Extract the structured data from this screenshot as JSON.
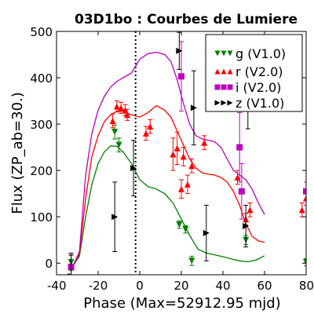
{
  "chart_data": {
    "type": "scatter",
    "title": "03D1bo : Courbes de Lumiere",
    "xlabel": "Phase (Max=52912.95 mjd)",
    "ylabel": "Flux (ZP_ab=30.)",
    "xlim": [
      -40,
      80
    ],
    "ylim": [
      -25,
      500
    ],
    "xticks": [
      -40,
      -20,
      0,
      20,
      40,
      60,
      80
    ],
    "yticks": [
      0,
      100,
      200,
      300,
      400,
      500
    ],
    "xtick_labels": [
      "-40",
      "-20",
      "0",
      "20",
      "40",
      "60",
      "80"
    ],
    "ytick_labels": [
      "0",
      "100",
      "200",
      "300",
      "400",
      "500"
    ],
    "max_phase_line": -2,
    "legend_position": "top-right",
    "series": [
      {
        "name": "g (V1.0)",
        "color": "#008000",
        "marker": "triangle-down",
        "points": [
          {
            "x": -33,
            "y": 2,
            "err": 18
          },
          {
            "x": -12,
            "y": 283,
            "err": 15
          },
          {
            "x": -10,
            "y": 255,
            "err": 15
          },
          {
            "x": 19,
            "y": 83,
            "err": 8
          },
          {
            "x": 22,
            "y": 73,
            "err": 8
          },
          {
            "x": 25,
            "y": 5,
            "err": 10
          },
          {
            "x": 51,
            "y": 50,
            "err": 10
          },
          {
            "x": 80,
            "y": 2,
            "err": 8
          }
        ],
        "curve": [
          [
            -32,
            -5
          ],
          [
            -29,
            15
          ],
          [
            -26,
            100
          ],
          [
            -23,
            170
          ],
          [
            -20,
            215
          ],
          [
            -17,
            240
          ],
          [
            -14,
            253
          ],
          [
            -11,
            252
          ],
          [
            -8,
            240
          ],
          [
            -4,
            215
          ],
          [
            0,
            180
          ],
          [
            4,
            165
          ],
          [
            8,
            160
          ],
          [
            12,
            150
          ],
          [
            16,
            130
          ],
          [
            20,
            95
          ],
          [
            24,
            60
          ],
          [
            28,
            30
          ],
          [
            32,
            22
          ],
          [
            36,
            18
          ],
          [
            40,
            14
          ],
          [
            44,
            9
          ],
          [
            48,
            5
          ],
          [
            52,
            3
          ],
          [
            56,
            7
          ],
          [
            60,
            16
          ]
        ]
      },
      {
        "name": "r (V2.0)",
        "color": "#ff0000",
        "marker": "triangle-up",
        "points": [
          {
            "x": -13,
            "y": 307,
            "err": 15
          },
          {
            "x": -11,
            "y": 338,
            "err": 12
          },
          {
            "x": -9,
            "y": 335,
            "err": 12
          },
          {
            "x": -7,
            "y": 330,
            "err": 12
          },
          {
            "x": -6,
            "y": 320,
            "err": 12
          },
          {
            "x": 3,
            "y": 280,
            "err": 15
          },
          {
            "x": 5,
            "y": 295,
            "err": 15
          },
          {
            "x": 16,
            "y": 235,
            "err": 35
          },
          {
            "x": 18,
            "y": 248,
            "err": 35
          },
          {
            "x": 20,
            "y": 160,
            "err": 20
          },
          {
            "x": 21,
            "y": 230,
            "err": 20
          },
          {
            "x": 23,
            "y": 170,
            "err": 20
          },
          {
            "x": 25,
            "y": 210,
            "err": 15
          },
          {
            "x": 31,
            "y": 260,
            "err": 15
          },
          {
            "x": 47,
            "y": 185,
            "err": 15
          },
          {
            "x": 51,
            "y": 95,
            "err": 12
          },
          {
            "x": 53,
            "y": 115,
            "err": 15
          },
          {
            "x": 78,
            "y": 115,
            "err": 15
          },
          {
            "x": 80,
            "y": 140,
            "err": 15
          }
        ],
        "curve": [
          [
            -32,
            -5
          ],
          [
            -29,
            20
          ],
          [
            -26,
            140
          ],
          [
            -23,
            230
          ],
          [
            -20,
            275
          ],
          [
            -17,
            305
          ],
          [
            -14,
            320
          ],
          [
            -11,
            328
          ],
          [
            -8,
            328
          ],
          [
            -4,
            320
          ],
          [
            0,
            315
          ],
          [
            4,
            325
          ],
          [
            8,
            340
          ],
          [
            12,
            330
          ],
          [
            15,
            315
          ],
          [
            18,
            285
          ],
          [
            21,
            255
          ],
          [
            24,
            225
          ],
          [
            27,
            205
          ],
          [
            30,
            195
          ],
          [
            33,
            192
          ],
          [
            36,
            190
          ],
          [
            39,
            185
          ],
          [
            42,
            175
          ],
          [
            45,
            155
          ],
          [
            48,
            125
          ],
          [
            51,
            85
          ],
          [
            54,
            58
          ],
          [
            57,
            48
          ],
          [
            60,
            45
          ]
        ]
      },
      {
        "name": "i (V2.0)",
        "color": "#bf00bf",
        "marker": "square",
        "points": [
          {
            "x": -33,
            "y": -8,
            "err": 30
          },
          {
            "x": 20,
            "y": 403,
            "err": 75
          },
          {
            "x": 48,
            "y": 250,
            "err": 75
          },
          {
            "x": 49,
            "y": 155,
            "err": 60
          },
          {
            "x": 80,
            "y": 155,
            "err": 20
          }
        ],
        "curve": [
          [
            -32,
            -5
          ],
          [
            -29,
            25
          ],
          [
            -26,
            190
          ],
          [
            -23,
            280
          ],
          [
            -20,
            330
          ],
          [
            -17,
            360
          ],
          [
            -14,
            380
          ],
          [
            -11,
            392
          ],
          [
            -8,
            400
          ],
          [
            -4,
            410
          ],
          [
            0,
            440
          ],
          [
            4,
            452
          ],
          [
            8,
            455
          ],
          [
            12,
            450
          ],
          [
            15,
            435
          ],
          [
            18,
            395
          ],
          [
            21,
            345
          ],
          [
            24,
            300
          ],
          [
            27,
            275
          ],
          [
            30,
            268
          ],
          [
            33,
            265
          ],
          [
            36,
            262
          ],
          [
            39,
            250
          ],
          [
            42,
            225
          ],
          [
            45,
            200
          ],
          [
            48,
            190
          ],
          [
            51,
            180
          ],
          [
            54,
            160
          ],
          [
            57,
            130
          ],
          [
            60,
            105
          ]
        ]
      },
      {
        "name": "z (V1.0)",
        "color": "#000000",
        "marker": "triangle-right",
        "points": [
          {
            "x": -33,
            "y": -28,
            "err": 45
          },
          {
            "x": -12,
            "y": 100,
            "err": 75
          },
          {
            "x": -3,
            "y": 205,
            "err": 60
          },
          {
            "x": 19,
            "y": 458,
            "err": 40
          },
          {
            "x": 26,
            "y": 335,
            "err": 80
          },
          {
            "x": 32,
            "y": 65,
            "err": 60
          },
          {
            "x": 51,
            "y": 80,
            "err": 45
          },
          {
            "x": 52,
            "y": 340,
            "err": 50
          }
        ]
      }
    ]
  }
}
